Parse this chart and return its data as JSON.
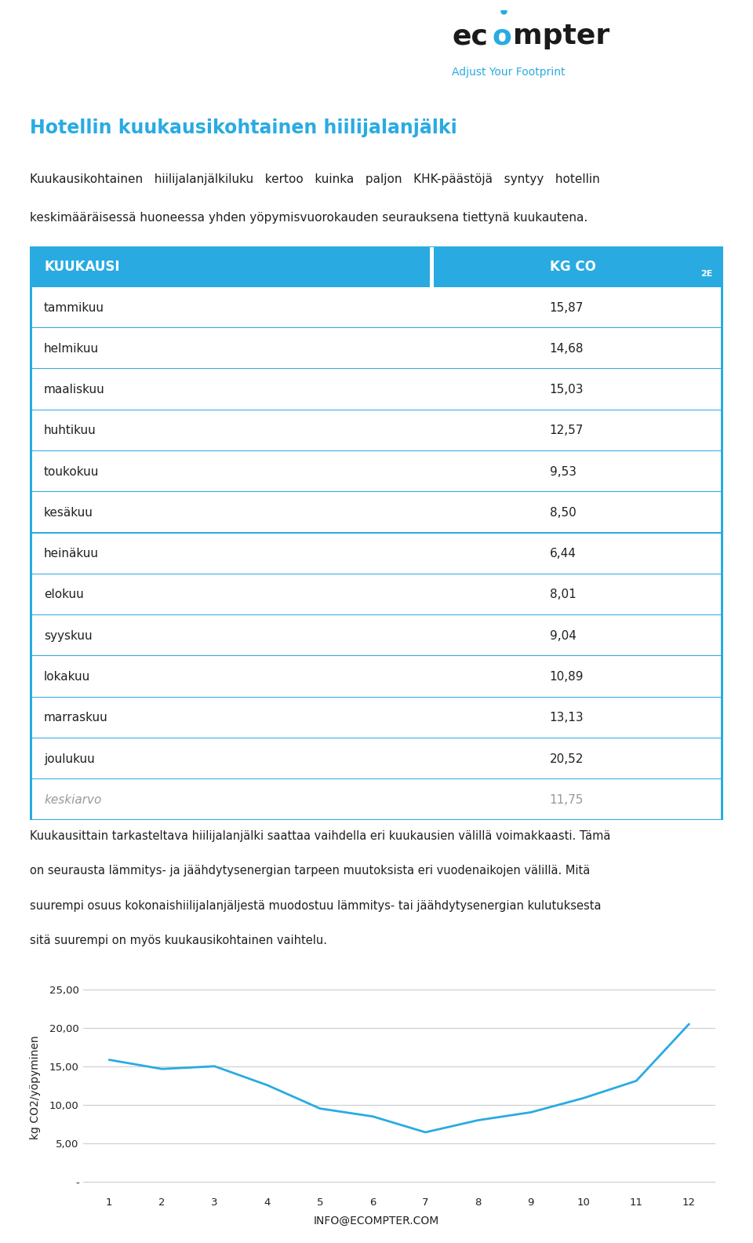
{
  "title": "Hotellin kuukausikohtainen hiilijalanjälki",
  "subtitle_line1": "Kuukausikohtainen   hiilijalanjälkiluku   kertoo   kuinka   paljon   KHK-päästöjä   syntyy   hotellin",
  "subtitle_line2": "keskimääräisessä huoneessa yhden yöpymisvuorokauden seurauksena tiettynä kuukautena.",
  "table_header_col1": "KUUKAUSI",
  "months": [
    "tammikuu",
    "helmikuu",
    "maaliskuu",
    "huhtikuu",
    "toukokuu",
    "kesäkuu",
    "heinäkuu",
    "elokuu",
    "syyskuu",
    "lokakuu",
    "marraskuu",
    "joulukuu",
    "keskiarvo"
  ],
  "values": [
    15.87,
    14.68,
    15.03,
    12.57,
    9.53,
    8.5,
    6.44,
    8.01,
    9.04,
    10.89,
    13.13,
    20.52,
    11.75
  ],
  "values_str": [
    "15,87",
    "14,68",
    "15,03",
    "12,57",
    "9,53",
    "8,50",
    "6,44",
    "8,01",
    "9,04",
    "10,89",
    "13,13",
    "20,52",
    "11,75"
  ],
  "header_bg_color": "#29ABE2",
  "header_text_color": "#ffffff",
  "row_border_color": "#29ABE2",
  "title_color": "#29ABE2",
  "line_color": "#29ABE2",
  "body_text_color": "#231F20",
  "para_line1": "Kuukausittain tarkasteltava hiilijalanjälki saattaa vaihdella eri kuukausien välillä voimakkaasti. Tämä",
  "para_line2": "on seurausta lämmitys- ja jäähdytysenergian tarpeen muutoksista eri vuodenaikojen välillä. Mitä",
  "para_line3": "suurempi osuus kokonaishiilijalanjäljestä muodostuu lämmitys- tai jäähdytysenergian kulutuksesta",
  "para_line4": "sitä suurempi on myös kuukausikohtainen vaihtelu.",
  "chart_ylabel": "kg CO2/yöpyminen",
  "chart_ytick_vals": [
    0,
    5.0,
    10.0,
    15.0,
    20.0,
    25.0
  ],
  "chart_ytick_labels": [
    "-",
    "5,00",
    "10,00",
    "15,00",
    "20,00",
    "25,00"
  ],
  "footer_text": "INFO@ECOMPTER.COM",
  "background_color": "#ffffff"
}
